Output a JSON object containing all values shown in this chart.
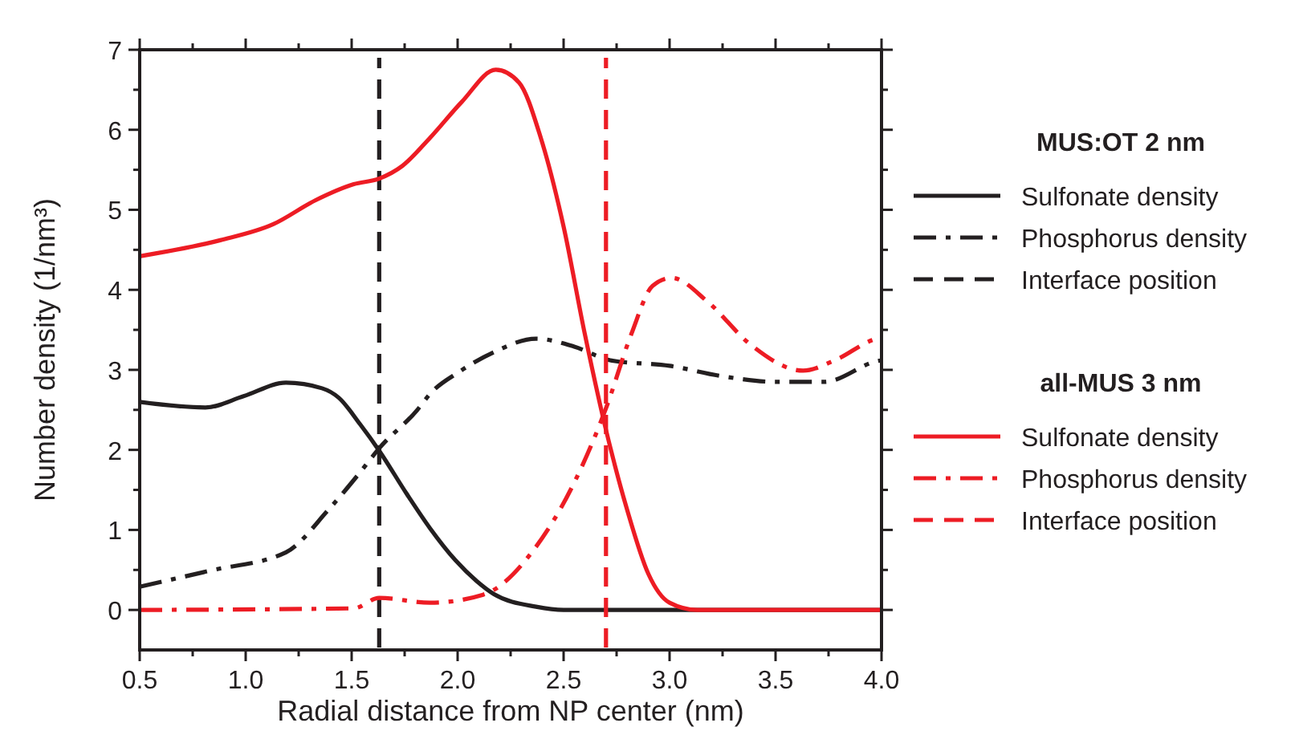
{
  "chart_data": {
    "type": "line",
    "xlabel": "Radial distance from NP center (nm)",
    "ylabel": "Number density (1/nm³)",
    "xlim": [
      0.5,
      4.0
    ],
    "ylim": [
      -0.5,
      7
    ],
    "xticks": [
      {
        "value": 0.5,
        "label": "0.5"
      },
      {
        "value": 0.75,
        "label": null
      },
      {
        "value": 1,
        "label": "1.0"
      },
      {
        "value": 1.25,
        "label": null
      },
      {
        "value": 1.5,
        "label": "1.5"
      },
      {
        "value": 1.75,
        "label": null
      },
      {
        "value": 2,
        "label": "2.0"
      },
      {
        "value": 2.25,
        "label": null
      },
      {
        "value": 2.5,
        "label": "2.5"
      },
      {
        "value": 2.75,
        "label": null
      },
      {
        "value": 3,
        "label": "3.0"
      },
      {
        "value": 3.25,
        "label": null
      },
      {
        "value": 3.5,
        "label": "3.5"
      },
      {
        "value": 3.75,
        "label": null
      },
      {
        "value": 4,
        "label": "4.0"
      }
    ],
    "yticks": [
      0,
      {
        "value": 0.5,
        "label": null
      },
      1,
      {
        "value": 1.5,
        "label": null
      },
      2,
      {
        "value": 2.5,
        "label": null
      },
      3,
      {
        "value": 3.5,
        "label": null
      },
      4,
      {
        "value": 4.5,
        "label": null
      },
      5,
      {
        "value": 5.5,
        "label": null
      },
      6,
      {
        "value": 6.5,
        "label": null
      },
      7
    ],
    "grid": false,
    "legend": "right",
    "marker": "none",
    "annotations": [
      "MUS:OT 2 nm",
      "all-MUS 3 nm"
    ],
    "series": [
      {
        "name": "Sulfonate density",
        "color": "#231f20",
        "line_style": "solid",
        "x": [
          0.5,
          0.81,
          0.99,
          1.19,
          1.36,
          1.44,
          1.54,
          1.63,
          1.76,
          1.87,
          1.99,
          2.09,
          2.17,
          2.37,
          2.5,
          3.0,
          3.5,
          4.0
        ],
        "values": [
          2.6,
          2.53,
          2.67,
          2.84,
          2.77,
          2.65,
          2.32,
          1.99,
          1.45,
          1.02,
          0.62,
          0.36,
          0.2,
          0.04,
          0,
          0,
          0,
          0
        ]
      },
      {
        "name": "Phosphorus density",
        "color": "#231f20",
        "line_style": "dashdot",
        "x": [
          0.5,
          0.83,
          1.19,
          1.39,
          1.54,
          1.63,
          1.81,
          1.87,
          2.01,
          2.17,
          2.37,
          2.55,
          2.72,
          3.0,
          3.25,
          3.5,
          3.73,
          3.98,
          4.0
        ],
        "values": [
          0.29,
          0.49,
          0.72,
          1.25,
          1.72,
          2.02,
          2.5,
          2.7,
          2.98,
          3.22,
          3.39,
          3.29,
          3.12,
          3.05,
          2.92,
          2.85,
          2.85,
          3.11,
          3.12
        ]
      },
      {
        "name": "Interface position",
        "color": "#231f20",
        "line_style": "dashed",
        "x": [
          1.63,
          1.63
        ],
        "values": [
          -0.47,
          6.9
        ]
      },
      {
        "name": "Sulfonate density",
        "color": "#ed1c24",
        "line_style": "solid",
        "x": [
          0.5,
          0.88,
          1.13,
          1.33,
          1.51,
          1.63,
          1.74,
          1.87,
          2.02,
          2.18,
          2.29,
          2.39,
          2.5,
          2.6,
          2.7,
          2.8,
          2.9,
          3.0,
          3.13,
          3.5,
          4.0
        ],
        "values": [
          4.42,
          4.62,
          4.82,
          5.12,
          5.32,
          5.39,
          5.55,
          5.9,
          6.35,
          6.75,
          6.59,
          5.92,
          4.79,
          3.45,
          2.25,
          1.25,
          0.45,
          0.09,
          0,
          0,
          0
        ]
      },
      {
        "name": "Phosphorus density",
        "color": "#ed1c24",
        "line_style": "dashdot",
        "x": [
          0.5,
          1.51,
          1.63,
          1.87,
          2.12,
          2.37,
          2.55,
          2.7,
          2.82,
          2.92,
          3.01,
          3.18,
          3.38,
          3.63,
          3.78,
          3.98,
          4.0
        ],
        "values": [
          0,
          0.02,
          0.15,
          0.09,
          0.19,
          0.79,
          1.59,
          2.52,
          3.45,
          4.05,
          4.15,
          3.85,
          3.32,
          2.99,
          3.12,
          3.39,
          3.4
        ]
      },
      {
        "name": "Interface position",
        "color": "#ed1c24",
        "line_style": "dashed",
        "x": [
          2.7,
          2.7
        ],
        "values": [
          -0.47,
          6.9
        ]
      }
    ]
  }
}
